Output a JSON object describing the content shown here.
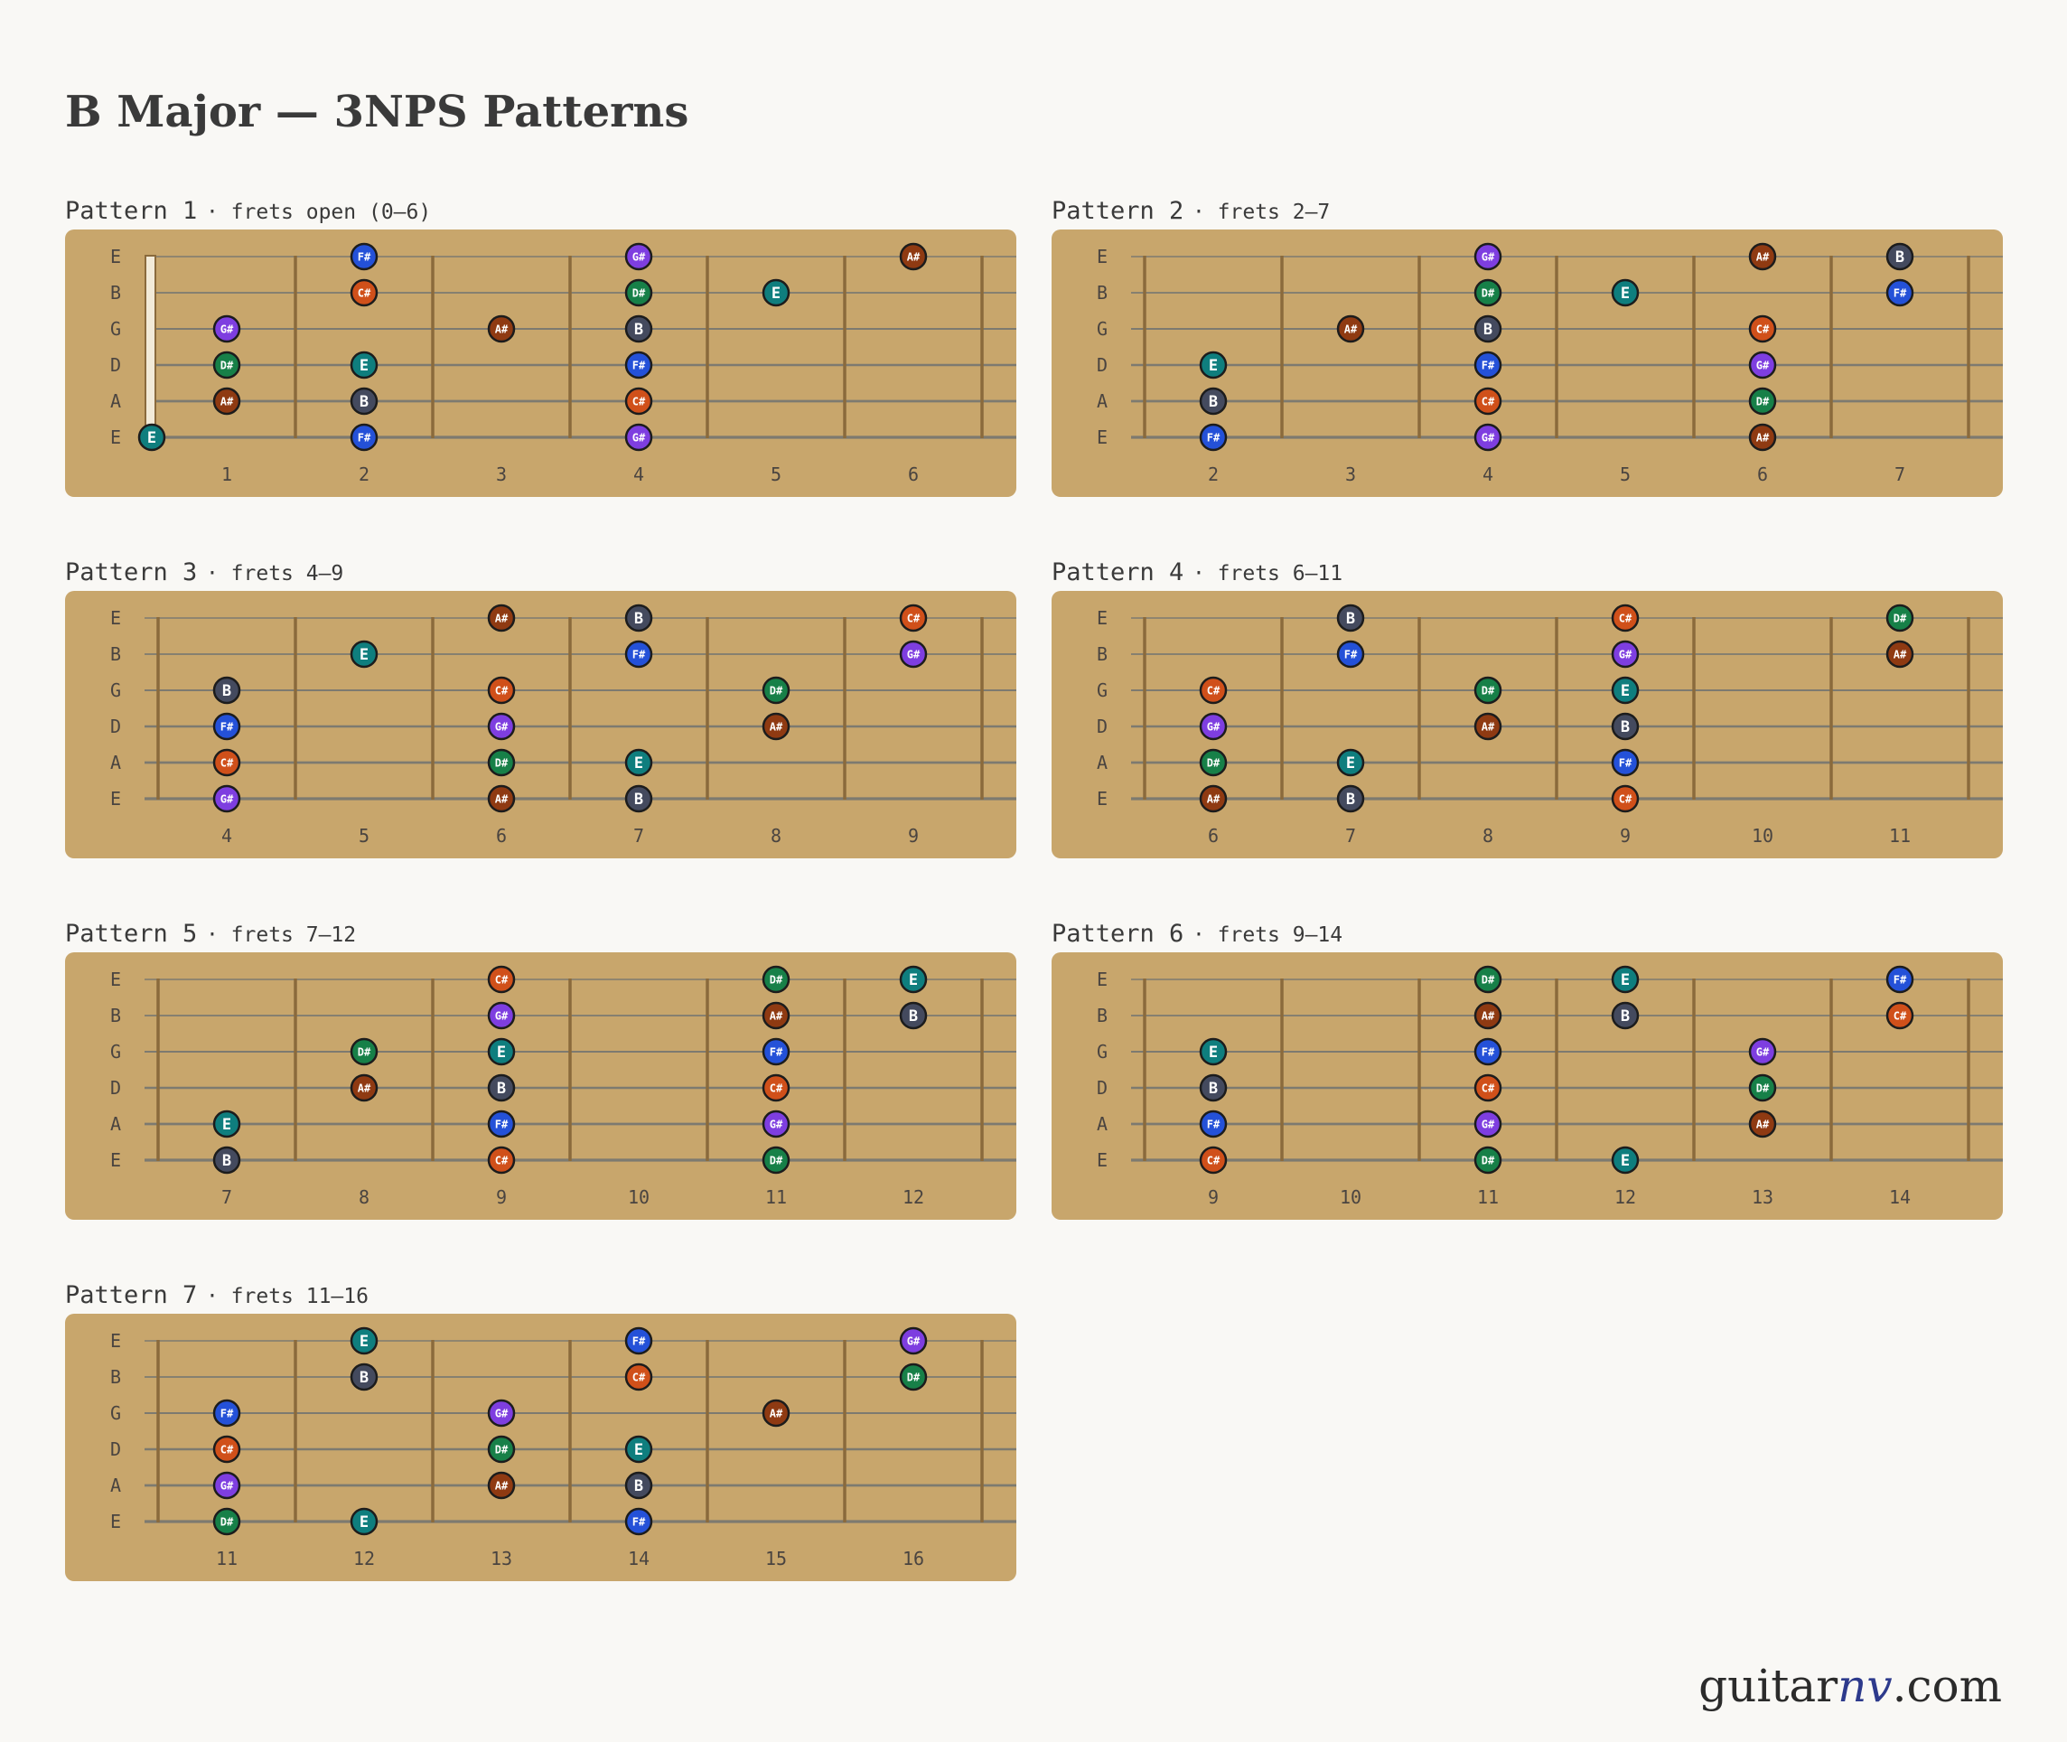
{
  "title": "B Major — 3NPS Patterns",
  "brand": {
    "prefix": "guitar",
    "accent": "nv",
    "suffix": ".com"
  },
  "colors": {
    "board": "#c8a66c",
    "fret": "#8a6a3c",
    "string": "#7d7a70",
    "nut": "#f2ead8",
    "label": "#4a4440",
    "marker_outline": "#1c1c1c",
    "brand_accent": "#2d3a8c"
  },
  "note_colors": {
    "E": "#0f7e7e",
    "F#": "#2451d8",
    "G#": "#7e3ee0",
    "A#": "#8f3a12",
    "B": "#444a5e",
    "C#": "#d0501a",
    "D#": "#178048"
  },
  "string_names": [
    "E",
    "B",
    "G",
    "D",
    "A",
    "E"
  ],
  "patterns": [
    {
      "name": "Pattern 1",
      "range": "· frets open (0–6)",
      "open": true,
      "fret_numbers": [
        "1",
        "2",
        "3",
        "4",
        "5",
        "6"
      ],
      "notes": [
        {
          "string": 1,
          "slot": 2,
          "label": "F#"
        },
        {
          "string": 1,
          "slot": 4,
          "label": "G#"
        },
        {
          "string": 1,
          "slot": 6,
          "label": "A#"
        },
        {
          "string": 2,
          "slot": 2,
          "label": "C#"
        },
        {
          "string": 2,
          "slot": 4,
          "label": "D#"
        },
        {
          "string": 2,
          "slot": 5,
          "label": "E"
        },
        {
          "string": 3,
          "slot": 1,
          "label": "G#"
        },
        {
          "string": 3,
          "slot": 3,
          "label": "A#"
        },
        {
          "string": 3,
          "slot": 4,
          "label": "B"
        },
        {
          "string": 4,
          "slot": 1,
          "label": "D#"
        },
        {
          "string": 4,
          "slot": 2,
          "label": "E"
        },
        {
          "string": 4,
          "slot": 4,
          "label": "F#"
        },
        {
          "string": 5,
          "slot": 1,
          "label": "A#"
        },
        {
          "string": 5,
          "slot": 2,
          "label": "B"
        },
        {
          "string": 5,
          "slot": 4,
          "label": "C#"
        },
        {
          "string": 6,
          "slot": 0,
          "label": "E"
        },
        {
          "string": 6,
          "slot": 2,
          "label": "F#"
        },
        {
          "string": 6,
          "slot": 4,
          "label": "G#"
        }
      ]
    },
    {
      "name": "Pattern 2",
      "range": "· frets 2–7",
      "open": false,
      "fret_numbers": [
        "2",
        "3",
        "4",
        "5",
        "6",
        "7"
      ],
      "notes": [
        {
          "string": 1,
          "slot": 3,
          "label": "G#"
        },
        {
          "string": 1,
          "slot": 5,
          "label": "A#"
        },
        {
          "string": 1,
          "slot": 6,
          "label": "B"
        },
        {
          "string": 2,
          "slot": 3,
          "label": "D#"
        },
        {
          "string": 2,
          "slot": 4,
          "label": "E"
        },
        {
          "string": 2,
          "slot": 6,
          "label": "F#"
        },
        {
          "string": 3,
          "slot": 2,
          "label": "A#"
        },
        {
          "string": 3,
          "slot": 3,
          "label": "B"
        },
        {
          "string": 3,
          "slot": 5,
          "label": "C#"
        },
        {
          "string": 4,
          "slot": 1,
          "label": "E"
        },
        {
          "string": 4,
          "slot": 3,
          "label": "F#"
        },
        {
          "string": 4,
          "slot": 5,
          "label": "G#"
        },
        {
          "string": 5,
          "slot": 1,
          "label": "B"
        },
        {
          "string": 5,
          "slot": 3,
          "label": "C#"
        },
        {
          "string": 5,
          "slot": 5,
          "label": "D#"
        },
        {
          "string": 6,
          "slot": 1,
          "label": "F#"
        },
        {
          "string": 6,
          "slot": 3,
          "label": "G#"
        },
        {
          "string": 6,
          "slot": 5,
          "label": "A#"
        }
      ]
    },
    {
      "name": "Pattern 3",
      "range": "· frets 4–9",
      "open": false,
      "fret_numbers": [
        "4",
        "5",
        "6",
        "7",
        "8",
        "9"
      ],
      "notes": [
        {
          "string": 1,
          "slot": 3,
          "label": "A#"
        },
        {
          "string": 1,
          "slot": 4,
          "label": "B"
        },
        {
          "string": 1,
          "slot": 6,
          "label": "C#"
        },
        {
          "string": 2,
          "slot": 2,
          "label": "E"
        },
        {
          "string": 2,
          "slot": 4,
          "label": "F#"
        },
        {
          "string": 2,
          "slot": 6,
          "label": "G#"
        },
        {
          "string": 3,
          "slot": 1,
          "label": "B"
        },
        {
          "string": 3,
          "slot": 3,
          "label": "C#"
        },
        {
          "string": 3,
          "slot": 5,
          "label": "D#"
        },
        {
          "string": 4,
          "slot": 1,
          "label": "F#"
        },
        {
          "string": 4,
          "slot": 3,
          "label": "G#"
        },
        {
          "string": 4,
          "slot": 5,
          "label": "A#"
        },
        {
          "string": 5,
          "slot": 1,
          "label": "C#"
        },
        {
          "string": 5,
          "slot": 3,
          "label": "D#"
        },
        {
          "string": 5,
          "slot": 4,
          "label": "E"
        },
        {
          "string": 6,
          "slot": 1,
          "label": "G#"
        },
        {
          "string": 6,
          "slot": 3,
          "label": "A#"
        },
        {
          "string": 6,
          "slot": 4,
          "label": "B"
        }
      ]
    },
    {
      "name": "Pattern 4",
      "range": "· frets 6–11",
      "open": false,
      "fret_numbers": [
        "6",
        "7",
        "8",
        "9",
        "10",
        "11"
      ],
      "notes": [
        {
          "string": 1,
          "slot": 2,
          "label": "B"
        },
        {
          "string": 1,
          "slot": 4,
          "label": "C#"
        },
        {
          "string": 1,
          "slot": 6,
          "label": "D#"
        },
        {
          "string": 2,
          "slot": 2,
          "label": "F#"
        },
        {
          "string": 2,
          "slot": 4,
          "label": "G#"
        },
        {
          "string": 2,
          "slot": 6,
          "label": "A#"
        },
        {
          "string": 3,
          "slot": 1,
          "label": "C#"
        },
        {
          "string": 3,
          "slot": 3,
          "label": "D#"
        },
        {
          "string": 3,
          "slot": 4,
          "label": "E"
        },
        {
          "string": 4,
          "slot": 1,
          "label": "G#"
        },
        {
          "string": 4,
          "slot": 3,
          "label": "A#"
        },
        {
          "string": 4,
          "slot": 4,
          "label": "B"
        },
        {
          "string": 5,
          "slot": 1,
          "label": "D#"
        },
        {
          "string": 5,
          "slot": 2,
          "label": "E"
        },
        {
          "string": 5,
          "slot": 4,
          "label": "F#"
        },
        {
          "string": 6,
          "slot": 1,
          "label": "A#"
        },
        {
          "string": 6,
          "slot": 2,
          "label": "B"
        },
        {
          "string": 6,
          "slot": 4,
          "label": "C#"
        }
      ]
    },
    {
      "name": "Pattern 5",
      "range": "· frets 7–12",
      "open": false,
      "fret_numbers": [
        "7",
        "8",
        "9",
        "10",
        "11",
        "12"
      ],
      "notes": [
        {
          "string": 1,
          "slot": 3,
          "label": "C#"
        },
        {
          "string": 1,
          "slot": 5,
          "label": "D#"
        },
        {
          "string": 1,
          "slot": 6,
          "label": "E"
        },
        {
          "string": 2,
          "slot": 3,
          "label": "G#"
        },
        {
          "string": 2,
          "slot": 5,
          "label": "A#"
        },
        {
          "string": 2,
          "slot": 6,
          "label": "B"
        },
        {
          "string": 3,
          "slot": 2,
          "label": "D#"
        },
        {
          "string": 3,
          "slot": 3,
          "label": "E"
        },
        {
          "string": 3,
          "slot": 5,
          "label": "F#"
        },
        {
          "string": 4,
          "slot": 2,
          "label": "A#"
        },
        {
          "string": 4,
          "slot": 3,
          "label": "B"
        },
        {
          "string": 4,
          "slot": 5,
          "label": "C#"
        },
        {
          "string": 5,
          "slot": 1,
          "label": "E"
        },
        {
          "string": 5,
          "slot": 3,
          "label": "F#"
        },
        {
          "string": 5,
          "slot": 5,
          "label": "G#"
        },
        {
          "string": 6,
          "slot": 1,
          "label": "B"
        },
        {
          "string": 6,
          "slot": 3,
          "label": "C#"
        },
        {
          "string": 6,
          "slot": 5,
          "label": "D#"
        }
      ]
    },
    {
      "name": "Pattern 6",
      "range": "· frets 9–14",
      "open": false,
      "fret_numbers": [
        "9",
        "10",
        "11",
        "12",
        "13",
        "14"
      ],
      "notes": [
        {
          "string": 1,
          "slot": 3,
          "label": "D#"
        },
        {
          "string": 1,
          "slot": 4,
          "label": "E"
        },
        {
          "string": 1,
          "slot": 6,
          "label": "F#"
        },
        {
          "string": 2,
          "slot": 3,
          "label": "A#"
        },
        {
          "string": 2,
          "slot": 4,
          "label": "B"
        },
        {
          "string": 2,
          "slot": 6,
          "label": "C#"
        },
        {
          "string": 3,
          "slot": 1,
          "label": "E"
        },
        {
          "string": 3,
          "slot": 3,
          "label": "F#"
        },
        {
          "string": 3,
          "slot": 5,
          "label": "G#"
        },
        {
          "string": 4,
          "slot": 1,
          "label": "B"
        },
        {
          "string": 4,
          "slot": 3,
          "label": "C#"
        },
        {
          "string": 4,
          "slot": 5,
          "label": "D#"
        },
        {
          "string": 5,
          "slot": 1,
          "label": "F#"
        },
        {
          "string": 5,
          "slot": 3,
          "label": "G#"
        },
        {
          "string": 5,
          "slot": 5,
          "label": "A#"
        },
        {
          "string": 6,
          "slot": 1,
          "label": "C#"
        },
        {
          "string": 6,
          "slot": 3,
          "label": "D#"
        },
        {
          "string": 6,
          "slot": 4,
          "label": "E"
        }
      ]
    },
    {
      "name": "Pattern 7",
      "range": "· frets 11–16",
      "open": false,
      "fret_numbers": [
        "11",
        "12",
        "13",
        "14",
        "15",
        "16"
      ],
      "notes": [
        {
          "string": 1,
          "slot": 2,
          "label": "E"
        },
        {
          "string": 1,
          "slot": 4,
          "label": "F#"
        },
        {
          "string": 1,
          "slot": 6,
          "label": "G#"
        },
        {
          "string": 2,
          "slot": 2,
          "label": "B"
        },
        {
          "string": 2,
          "slot": 4,
          "label": "C#"
        },
        {
          "string": 2,
          "slot": 6,
          "label": "D#"
        },
        {
          "string": 3,
          "slot": 1,
          "label": "F#"
        },
        {
          "string": 3,
          "slot": 3,
          "label": "G#"
        },
        {
          "string": 3,
          "slot": 5,
          "label": "A#"
        },
        {
          "string": 4,
          "slot": 1,
          "label": "C#"
        },
        {
          "string": 4,
          "slot": 3,
          "label": "D#"
        },
        {
          "string": 4,
          "slot": 4,
          "label": "E"
        },
        {
          "string": 5,
          "slot": 1,
          "label": "G#"
        },
        {
          "string": 5,
          "slot": 3,
          "label": "A#"
        },
        {
          "string": 5,
          "slot": 4,
          "label": "B"
        },
        {
          "string": 6,
          "slot": 1,
          "label": "D#"
        },
        {
          "string": 6,
          "slot": 2,
          "label": "E"
        },
        {
          "string": 6,
          "slot": 4,
          "label": "F#"
        }
      ]
    }
  ]
}
